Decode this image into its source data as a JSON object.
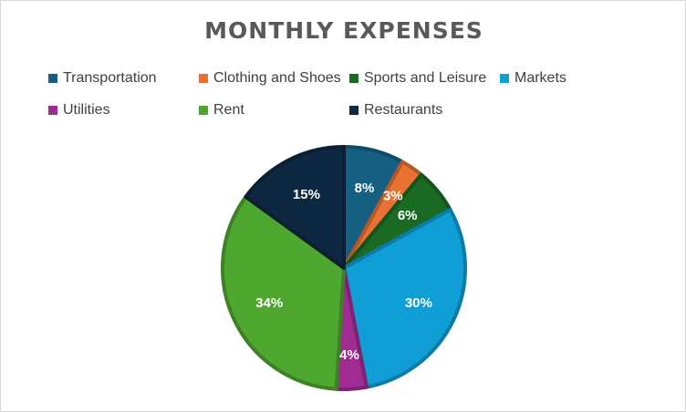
{
  "chart_data": {
    "type": "pie",
    "title": "MONTHLY EXPENSES",
    "legend_position": "top",
    "categories": [
      "Transportation",
      "Clothing and Shoes",
      "Sports and Leisure",
      "Markets",
      "Utilities",
      "Rent",
      "Restaurants"
    ],
    "values": [
      8,
      3,
      6,
      30,
      4,
      34,
      15
    ],
    "labels": [
      "8%",
      "3%",
      "6%",
      "30%",
      "4%",
      "34%",
      "15%"
    ],
    "colors": [
      "#156082",
      "#e97132",
      "#196b24",
      "#0f9ed5",
      "#a02b93",
      "#4ea72e",
      "#0e2841"
    ]
  }
}
